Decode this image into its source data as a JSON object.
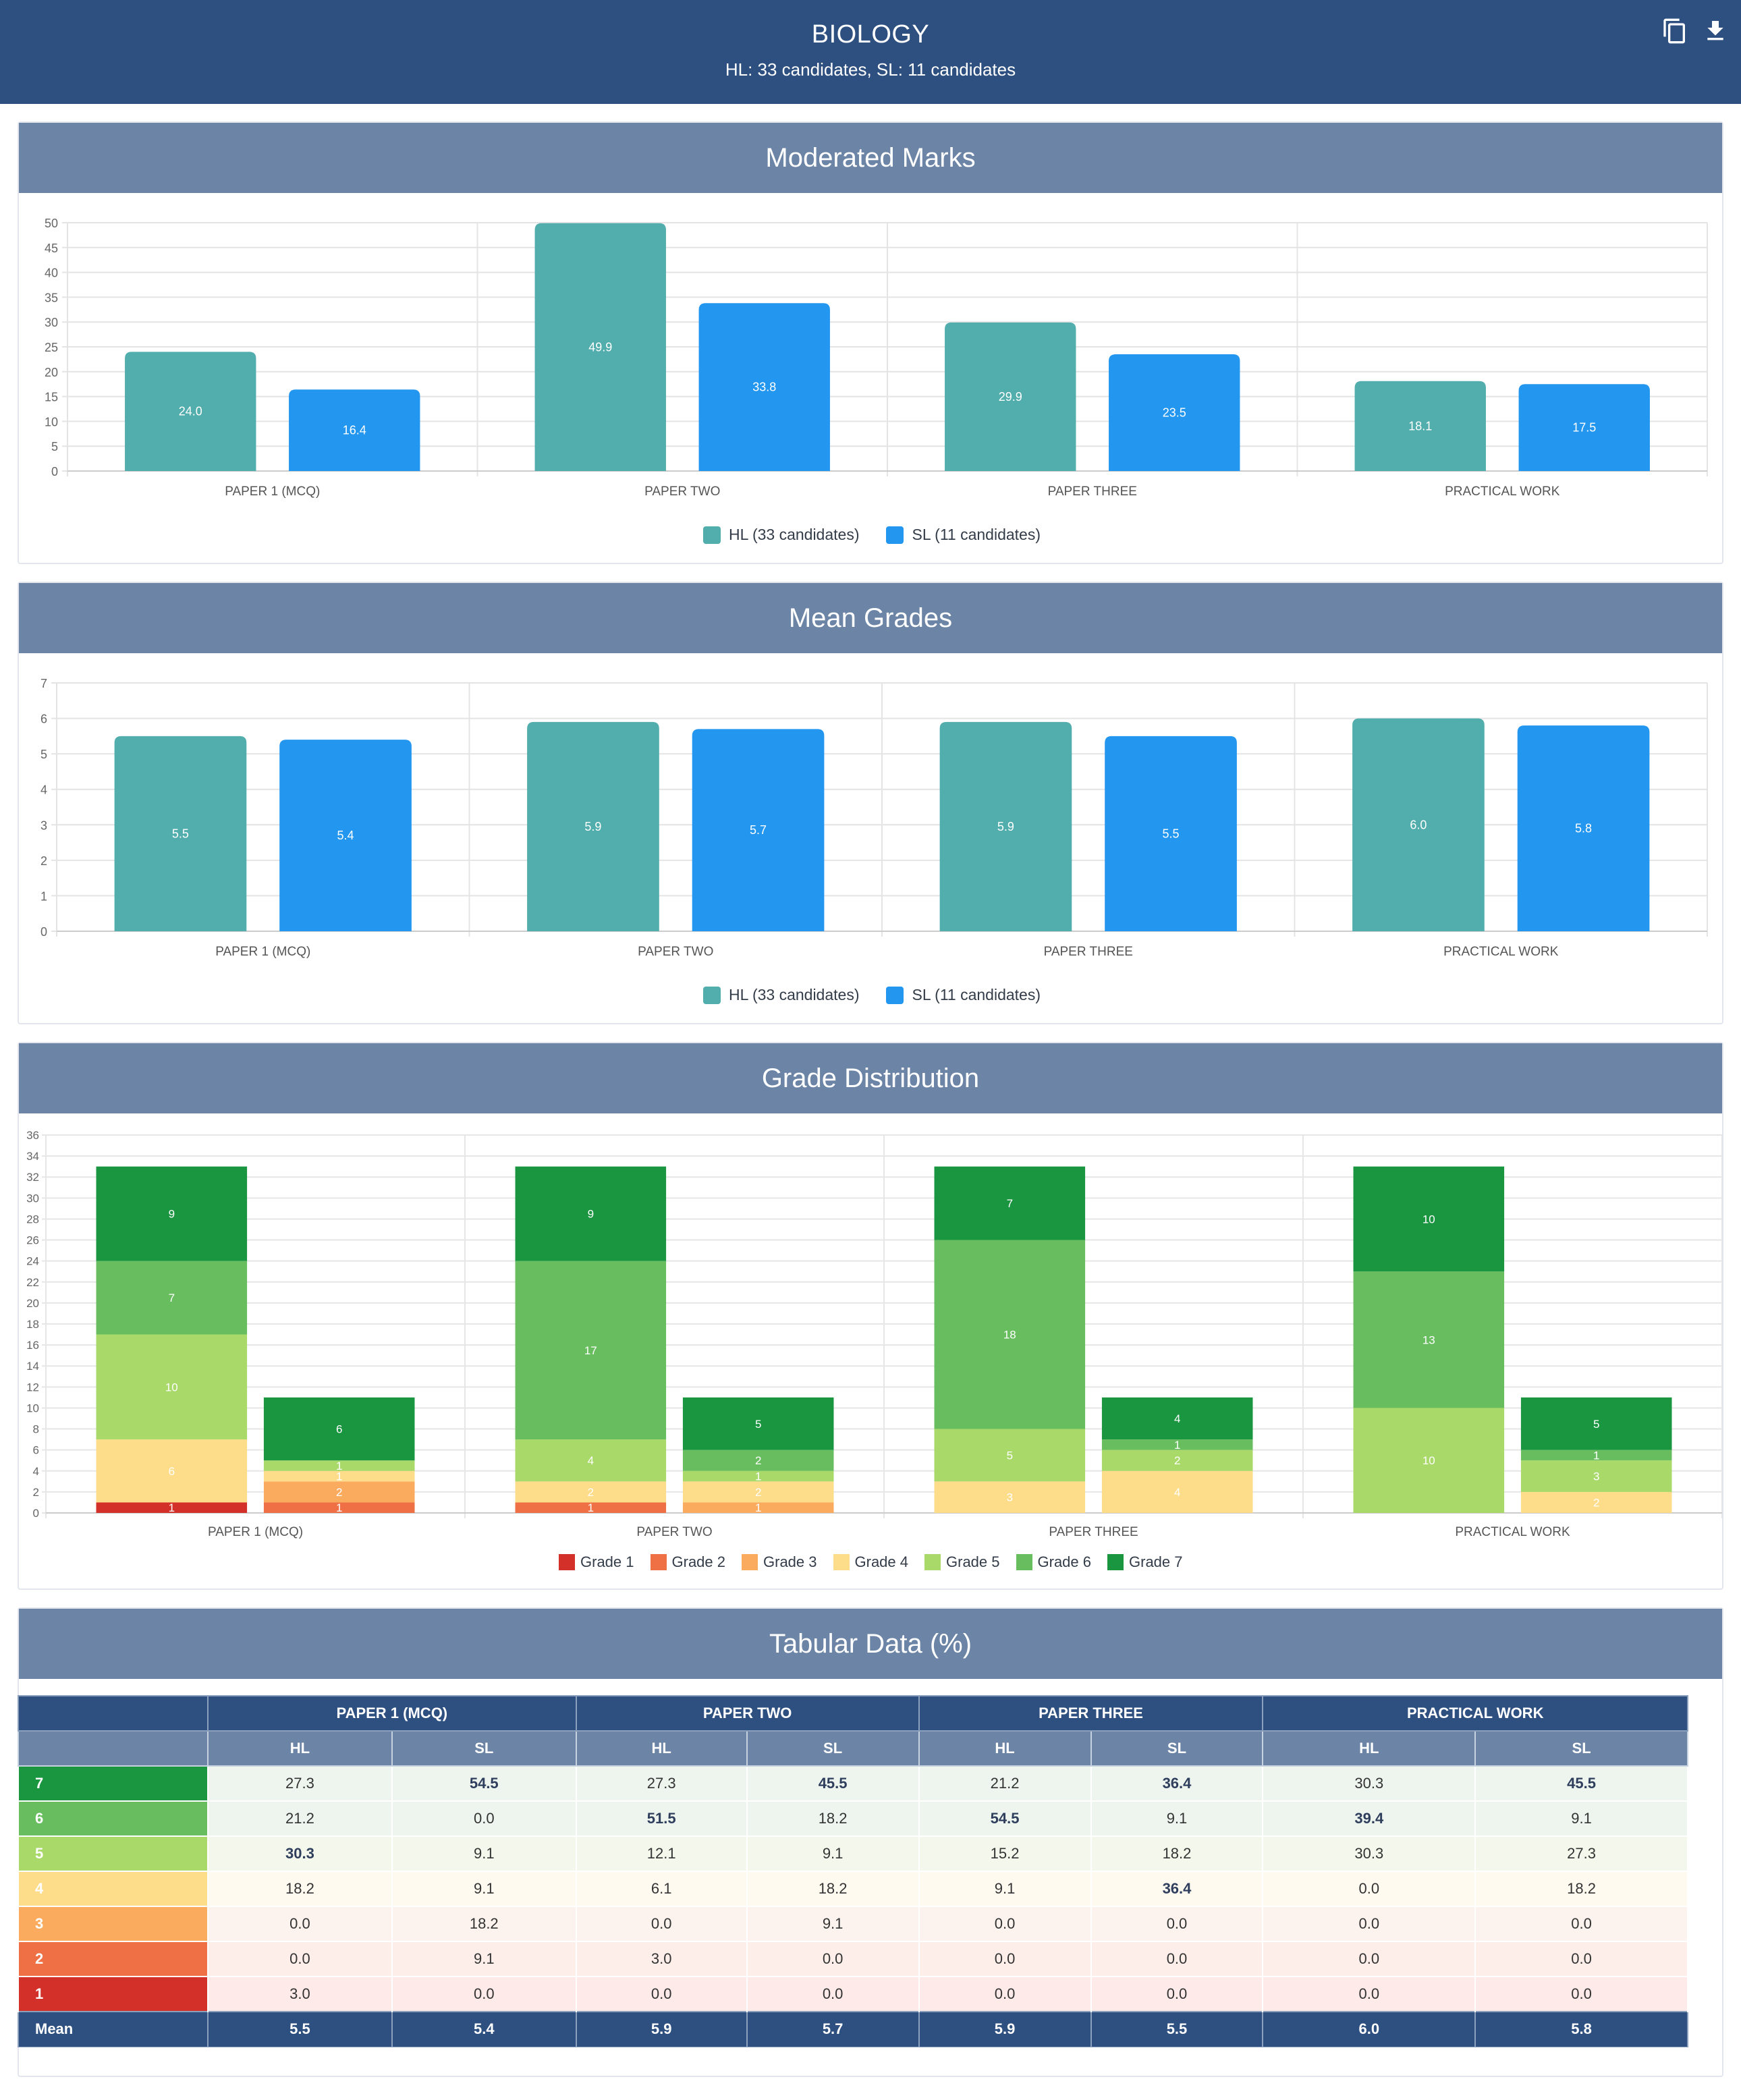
{
  "header": {
    "title": "BIOLOGY",
    "subtitle": "HL: 33 candidates, SL: 11 candidates",
    "copy_icon": "copy-icon",
    "download_icon": "download-icon"
  },
  "colors": {
    "header_bg": "#2e5080",
    "card_head_bg": "#6c85a6",
    "hl": "#52adad",
    "sl": "#2396f0",
    "grades": [
      "#d3302a",
      "#ee7044",
      "#fbab5e",
      "#fddc8a",
      "#a8d969",
      "#68be5f",
      "#1a9641"
    ]
  },
  "cards": {
    "marks_title": "Moderated Marks",
    "grades_title": "Mean Grades",
    "dist_title": "Grade Distribution",
    "table_title": "Tabular Data (%)"
  },
  "chart_data": [
    {
      "type": "bar",
      "title": "Moderated Marks",
      "categories": [
        "PAPER 1 (MCQ)",
        "PAPER TWO",
        "PAPER THREE",
        "PRACTICAL WORK"
      ],
      "series": [
        {
          "name": "HL (33 candidates)",
          "values": [
            24.0,
            49.9,
            29.9,
            18.1
          ]
        },
        {
          "name": "SL (11 candidates)",
          "values": [
            16.4,
            33.8,
            23.5,
            17.5
          ]
        }
      ],
      "ylim": [
        0,
        50
      ],
      "yticks": [
        0,
        5,
        10,
        15,
        20,
        25,
        30,
        35,
        40,
        45,
        50
      ],
      "grid": true,
      "legend": "bottom-center"
    },
    {
      "type": "bar",
      "title": "Mean Grades",
      "categories": [
        "PAPER 1 (MCQ)",
        "PAPER TWO",
        "PAPER THREE",
        "PRACTICAL WORK"
      ],
      "series": [
        {
          "name": "HL (33 candidates)",
          "values": [
            5.5,
            5.9,
            5.9,
            6.0
          ]
        },
        {
          "name": "SL (11 candidates)",
          "values": [
            5.4,
            5.7,
            5.5,
            5.8
          ]
        }
      ],
      "ylim": [
        0,
        7
      ],
      "yticks": [
        0,
        1,
        2,
        3,
        4,
        5,
        6,
        7
      ],
      "grid": true,
      "legend": "bottom-center"
    },
    {
      "type": "bar",
      "stacked": true,
      "title": "Grade Distribution",
      "categories": [
        "PAPER 1 (MCQ)",
        "PAPER TWO",
        "PAPER THREE",
        "PRACTICAL WORK"
      ],
      "groups": [
        "HL",
        "SL"
      ],
      "series": [
        {
          "name": "Grade 1",
          "hl": [
            1,
            0,
            0,
            0
          ],
          "sl": [
            0,
            0,
            0,
            0
          ]
        },
        {
          "name": "Grade 2",
          "hl": [
            0,
            1,
            0,
            0
          ],
          "sl": [
            1,
            0,
            0,
            0
          ]
        },
        {
          "name": "Grade 3",
          "hl": [
            0,
            0,
            0,
            0
          ],
          "sl": [
            2,
            1,
            0,
            0
          ]
        },
        {
          "name": "Grade 4",
          "hl": [
            6,
            2,
            3,
            0
          ],
          "sl": [
            1,
            2,
            4,
            2
          ]
        },
        {
          "name": "Grade 5",
          "hl": [
            10,
            4,
            5,
            10
          ],
          "sl": [
            1,
            1,
            2,
            3
          ]
        },
        {
          "name": "Grade 6",
          "hl": [
            7,
            17,
            18,
            13
          ],
          "sl": [
            0,
            2,
            1,
            1
          ]
        },
        {
          "name": "Grade 7",
          "hl": [
            9,
            9,
            7,
            10
          ],
          "sl": [
            6,
            5,
            4,
            5
          ]
        }
      ],
      "ylim": [
        0,
        36
      ],
      "yticks": [
        0,
        2,
        4,
        6,
        8,
        10,
        12,
        14,
        16,
        18,
        20,
        22,
        24,
        26,
        28,
        30,
        32,
        34,
        36
      ],
      "grid": true,
      "legend": "bottom-center"
    },
    {
      "type": "table",
      "title": "Tabular Data (%)",
      "columns": [
        "PAPER 1 (MCQ)",
        "PAPER TWO",
        "PAPER THREE",
        "PRACTICAL WORK"
      ],
      "subcolumns": [
        "HL",
        "SL"
      ],
      "rows": [
        {
          "label": "7",
          "values": [
            "27.3",
            "54.5",
            "27.3",
            "45.5",
            "21.2",
            "36.4",
            "30.3",
            "45.5"
          ],
          "bold": [
            false,
            true,
            false,
            true,
            false,
            true,
            false,
            true
          ]
        },
        {
          "label": "6",
          "values": [
            "21.2",
            "0.0",
            "51.5",
            "18.2",
            "54.5",
            "9.1",
            "39.4",
            "9.1"
          ],
          "bold": [
            false,
            false,
            true,
            false,
            true,
            false,
            true,
            false
          ]
        },
        {
          "label": "5",
          "values": [
            "30.3",
            "9.1",
            "12.1",
            "9.1",
            "15.2",
            "18.2",
            "30.3",
            "27.3"
          ],
          "bold": [
            true,
            false,
            false,
            false,
            false,
            false,
            false,
            false
          ]
        },
        {
          "label": "4",
          "values": [
            "18.2",
            "9.1",
            "6.1",
            "18.2",
            "9.1",
            "36.4",
            "0.0",
            "18.2"
          ],
          "bold": [
            false,
            false,
            false,
            false,
            false,
            true,
            false,
            false
          ]
        },
        {
          "label": "3",
          "values": [
            "0.0",
            "18.2",
            "0.0",
            "9.1",
            "0.0",
            "0.0",
            "0.0",
            "0.0"
          ],
          "bold": [
            false,
            false,
            false,
            false,
            false,
            false,
            false,
            false
          ]
        },
        {
          "label": "2",
          "values": [
            "0.0",
            "9.1",
            "3.0",
            "0.0",
            "0.0",
            "0.0",
            "0.0",
            "0.0"
          ],
          "bold": [
            false,
            false,
            false,
            false,
            false,
            false,
            false,
            false
          ]
        },
        {
          "label": "1",
          "values": [
            "3.0",
            "0.0",
            "0.0",
            "0.0",
            "0.0",
            "0.0",
            "0.0",
            "0.0"
          ],
          "bold": [
            false,
            false,
            false,
            false,
            false,
            false,
            false,
            false
          ]
        }
      ],
      "mean": {
        "label": "Mean",
        "values": [
          "5.5",
          "5.4",
          "5.9",
          "5.7",
          "5.9",
          "5.5",
          "6.0",
          "5.8"
        ]
      }
    }
  ]
}
